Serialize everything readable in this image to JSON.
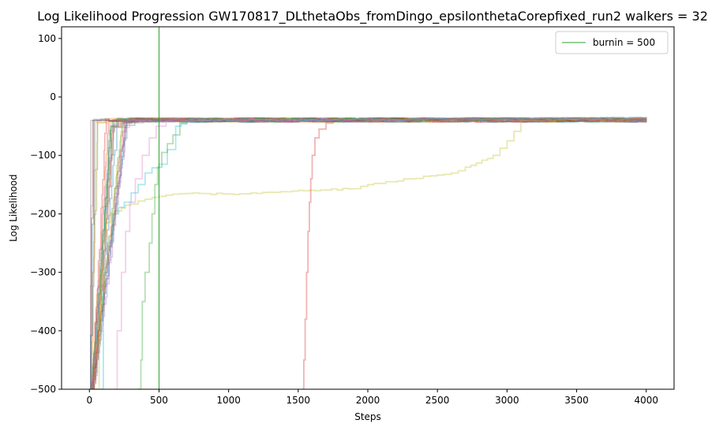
{
  "chart_data": {
    "type": "line",
    "title": "Log Likelihood Progression GW170817_DLthetaObs_fromDingo_epsilonthetaCorepfixed_run2 walkers = 32",
    "xlabel": "Steps",
    "ylabel": "Log Likelihood",
    "xlim": [
      -200,
      4200
    ],
    "ylim": [
      -500,
      120
    ],
    "xticks": [
      0,
      500,
      1000,
      1500,
      2000,
      2500,
      3000,
      3500,
      4000
    ],
    "xtick_labels": [
      "0",
      "500",
      "1000",
      "1500",
      "2000",
      "2500",
      "3000",
      "3500",
      "4000"
    ],
    "yticks": [
      100,
      0,
      -100,
      -200,
      -300,
      -400,
      -500
    ],
    "ytick_labels": [
      "100",
      "0",
      "−100",
      "−200",
      "−300",
      "−400",
      "−500"
    ],
    "grid": false,
    "legend": {
      "placement": "top-right",
      "entries": [
        {
          "label": "burnin = 500",
          "color": "#2ca02c"
        }
      ]
    },
    "burnin": {
      "x": 500,
      "color": "#2ca02c"
    },
    "plateau": -35,
    "walker_count": 32,
    "walker_colors": [
      "#1f77b4",
      "#ff7f0e",
      "#2ca02c",
      "#d62728",
      "#9467bd",
      "#8c564b",
      "#e377c2",
      "#7f7f7f",
      "#bcbd22",
      "#17becf"
    ],
    "highlighted_walkers": [
      {
        "color": "#bcbd22",
        "points": [
          [
            0,
            -500
          ],
          [
            60,
            -500
          ],
          [
            70,
            -420
          ],
          [
            80,
            -300
          ],
          [
            90,
            -250
          ],
          [
            105,
            -230
          ],
          [
            120,
            -215
          ],
          [
            150,
            -200
          ],
          [
            200,
            -195
          ],
          [
            230,
            -190
          ],
          [
            260,
            -185
          ],
          [
            300,
            -183
          ],
          [
            350,
            -178
          ],
          [
            400,
            -175
          ],
          [
            450,
            -172
          ],
          [
            500,
            -170
          ],
          [
            550,
            -168
          ],
          [
            700,
            -165
          ],
          [
            1000,
            -166
          ],
          [
            1200,
            -165
          ],
          [
            1500,
            -160
          ],
          [
            1900,
            -157
          ],
          [
            2000,
            -150
          ],
          [
            2300,
            -140
          ],
          [
            2450,
            -135
          ],
          [
            2600,
            -130
          ],
          [
            2700,
            -120
          ],
          [
            2900,
            -100
          ],
          [
            3000,
            -75
          ],
          [
            3100,
            -40
          ],
          [
            3500,
            -38
          ],
          [
            4000,
            -38
          ]
        ]
      },
      {
        "color": "#d62728",
        "points": [
          [
            1530,
            -500
          ],
          [
            1540,
            -450
          ],
          [
            1550,
            -380
          ],
          [
            1560,
            -300
          ],
          [
            1570,
            -230
          ],
          [
            1580,
            -180
          ],
          [
            1590,
            -140
          ],
          [
            1600,
            -100
          ],
          [
            1620,
            -70
          ],
          [
            1650,
            -55
          ],
          [
            1700,
            -45
          ],
          [
            1800,
            -40
          ],
          [
            2000,
            -38
          ],
          [
            4000,
            -37
          ]
        ]
      },
      {
        "color": "#2ca02c",
        "points": [
          [
            350,
            -500
          ],
          [
            370,
            -450
          ],
          [
            380,
            -350
          ],
          [
            400,
            -300
          ],
          [
            430,
            -250
          ],
          [
            450,
            -200
          ],
          [
            470,
            -150
          ],
          [
            490,
            -120
          ],
          [
            520,
            -95
          ],
          [
            560,
            -80
          ],
          [
            600,
            -65
          ],
          [
            650,
            -45
          ],
          [
            700,
            -38
          ],
          [
            4000,
            -36
          ]
        ]
      },
      {
        "color": "#17becf",
        "points": [
          [
            80,
            -500
          ],
          [
            100,
            -300
          ],
          [
            130,
            -250
          ],
          [
            170,
            -200
          ],
          [
            250,
            -180
          ],
          [
            350,
            -150
          ],
          [
            400,
            -130
          ],
          [
            500,
            -115
          ],
          [
            560,
            -90
          ],
          [
            620,
            -50
          ],
          [
            700,
            -40
          ],
          [
            4000,
            -36
          ]
        ]
      },
      {
        "color": "#e377c2",
        "points": [
          [
            180,
            -500
          ],
          [
            200,
            -400
          ],
          [
            230,
            -300
          ],
          [
            260,
            -230
          ],
          [
            290,
            -180
          ],
          [
            330,
            -140
          ],
          [
            380,
            -100
          ],
          [
            430,
            -70
          ],
          [
            480,
            -50
          ],
          [
            550,
            -40
          ],
          [
            4000,
            -36
          ]
        ]
      }
    ]
  },
  "legend_label": "burnin = 500"
}
